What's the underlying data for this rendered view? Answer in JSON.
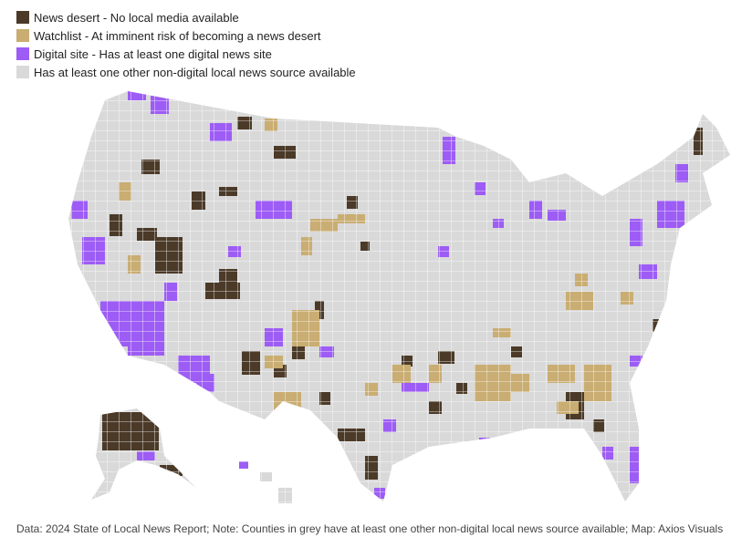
{
  "legend": {
    "items": [
      {
        "label": "News desert - No local media available",
        "color": "#4b3a28"
      },
      {
        "label": "Watchlist - At imminent risk of becoming a news desert",
        "color": "#c9ad72"
      },
      {
        "label": "Digital site - Has at least one digital news site",
        "color": "#9d5cf5"
      },
      {
        "label": "Has at least one other non-digital local news source available",
        "color": "#d9d9d9"
      }
    ]
  },
  "footer": "Data: 2024 State of Local News Report; Note: Counties in grey have at least one other non-digital local news source available; Map: Axios Visuals"
}
